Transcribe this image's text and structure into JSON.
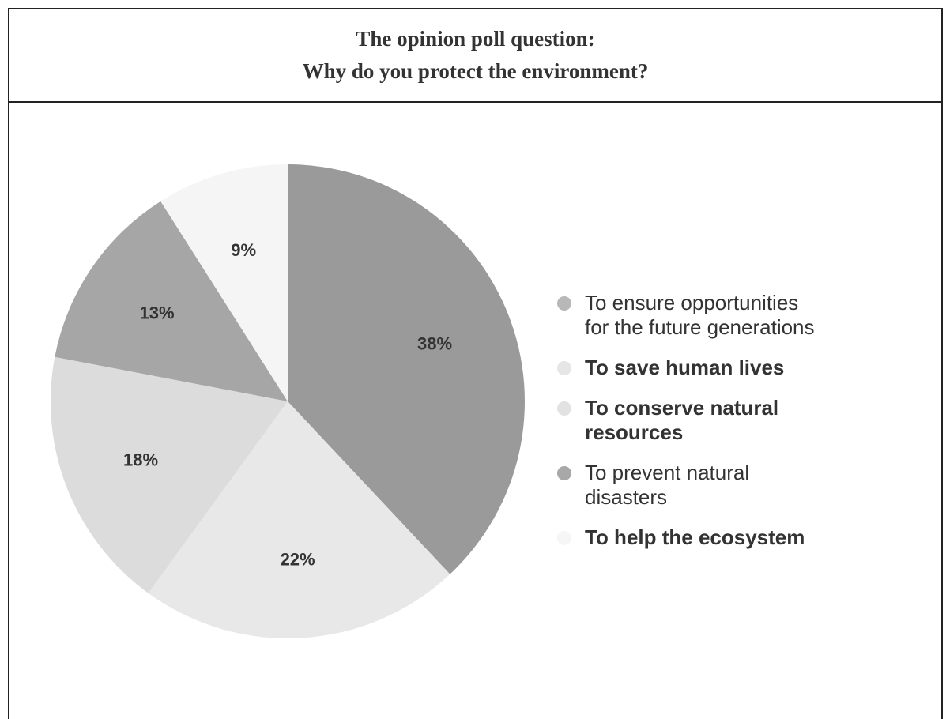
{
  "title": {
    "line1": "The opinion poll question:",
    "line2": "Why do you protect the environment?"
  },
  "chart_data": {
    "type": "pie",
    "title": "The opinion poll question: Why do you protect the environment?",
    "slices": [
      {
        "label": "To ensure opportunities for the future generations",
        "value": 38,
        "value_label": "38%",
        "color": "#9a9a9a"
      },
      {
        "label": "To save human lives",
        "value": 22,
        "value_label": "22%",
        "color": "#e8e8e8"
      },
      {
        "label": "To conserve natural resources",
        "value": 18,
        "value_label": "18%",
        "color": "#dcdcdc"
      },
      {
        "label": "To prevent natural disasters",
        "value": 13,
        "value_label": "13%",
        "color": "#a6a6a6"
      },
      {
        "label": "To help the ecosystem",
        "value": 9,
        "value_label": "9%",
        "color": "#f5f5f5"
      }
    ],
    "start_angle": "12 o'clock",
    "direction": "clockwise",
    "legend_placement": "right"
  },
  "legend": {
    "items": [
      {
        "line1": "To ensure opportunities",
        "line2": "for the future generations",
        "color": "#b8b8b8",
        "bold": false
      },
      {
        "line1": "To save human lives",
        "line2": "",
        "color": "#e6e6e6",
        "bold": true
      },
      {
        "line1": "To conserve natural",
        "line2": "resources",
        "color": "#e2e2e2",
        "bold": true
      },
      {
        "line1": "To prevent natural",
        "line2": "disasters",
        "color": "#a8a8a8",
        "bold": false
      },
      {
        "line1": "To help the ecosystem",
        "line2": "",
        "color": "#f6f6f6",
        "bold": true
      }
    ]
  }
}
